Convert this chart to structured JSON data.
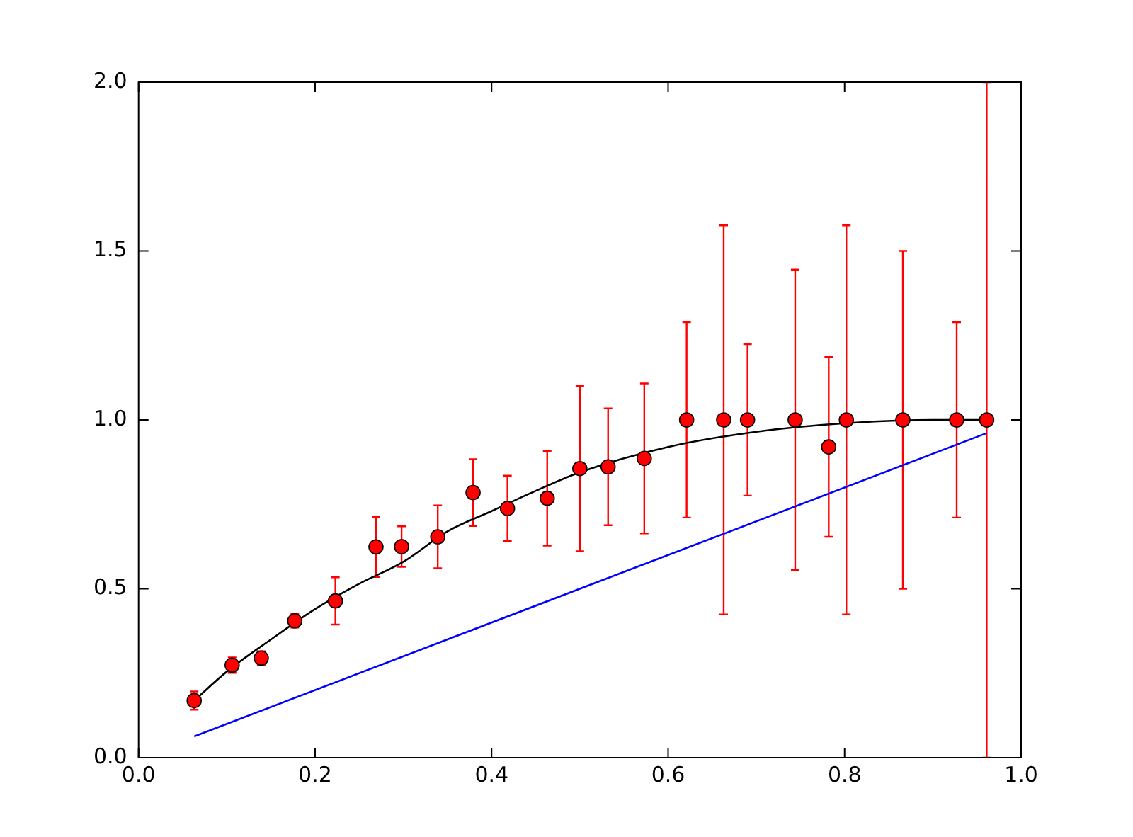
{
  "chart_data": {
    "type": "scatter",
    "xlim": [
      0,
      1
    ],
    "ylim": [
      0,
      2
    ],
    "xticks": [
      {
        "value": 0,
        "label": "0.0"
      },
      {
        "value": 0.2,
        "label": "0.2"
      },
      {
        "value": 0.4,
        "label": "0.4"
      },
      {
        "value": 0.6,
        "label": "0.6"
      },
      {
        "value": 0.8,
        "label": "0.8"
      },
      {
        "value": 1,
        "label": "1.0"
      }
    ],
    "yticks": [
      {
        "value": 0,
        "label": "0.0"
      },
      {
        "value": 0.5,
        "label": "0.5"
      },
      {
        "value": 1,
        "label": "1.0"
      },
      {
        "value": 1.5,
        "label": "1.5"
      },
      {
        "value": 2,
        "label": "2.0"
      }
    ],
    "grid": false,
    "legend": false,
    "series": [
      {
        "type": "line",
        "color": "#0000ff",
        "marker": "none",
        "line_style": "solid",
        "x": [
          0.063,
          0.961
        ],
        "values": [
          0.063,
          0.961
        ]
      },
      {
        "type": "line",
        "color": "#000000",
        "marker": "none",
        "line_style": "solid",
        "x": [
          0.063,
          0.1,
          0.15,
          0.2,
          0.25,
          0.3,
          0.35,
          0.4,
          0.45,
          0.5,
          0.6,
          0.7,
          0.8,
          0.9,
          0.961
        ],
        "values": [
          0.169,
          0.255,
          0.35,
          0.44,
          0.515,
          0.58,
          0.67,
          0.73,
          0.79,
          0.845,
          0.92,
          0.965,
          0.99,
          1.0,
          1.0
        ]
      },
      {
        "color": "#ff0000",
        "marker": "circle",
        "x": [
          0.063,
          0.106,
          0.139,
          0.177,
          0.223,
          0.269,
          0.298,
          0.339,
          0.379,
          0.418,
          0.463,
          0.5,
          0.532,
          0.573,
          0.621,
          0.663,
          0.69,
          0.744,
          0.782,
          0.802,
          0.866,
          0.927,
          0.961
        ],
        "values": [
          0.169,
          0.274,
          0.295,
          0.405,
          0.464,
          0.624,
          0.625,
          0.654,
          0.785,
          0.738,
          0.768,
          0.856,
          0.861,
          0.886,
          1.0,
          1.0,
          1.0,
          1.0,
          0.92,
          1.0,
          1.0,
          1.0,
          1.0
        ],
        "errors": [
          0.027,
          0.023,
          0.02,
          0.02,
          0.07,
          0.089,
          0.06,
          0.093,
          0.099,
          0.097,
          0.14,
          0.245,
          0.173,
          0.222,
          0.289,
          0.576,
          0.224,
          0.445,
          0.266,
          0.576,
          0.5,
          0.289,
          1.0
        ]
      }
    ]
  }
}
